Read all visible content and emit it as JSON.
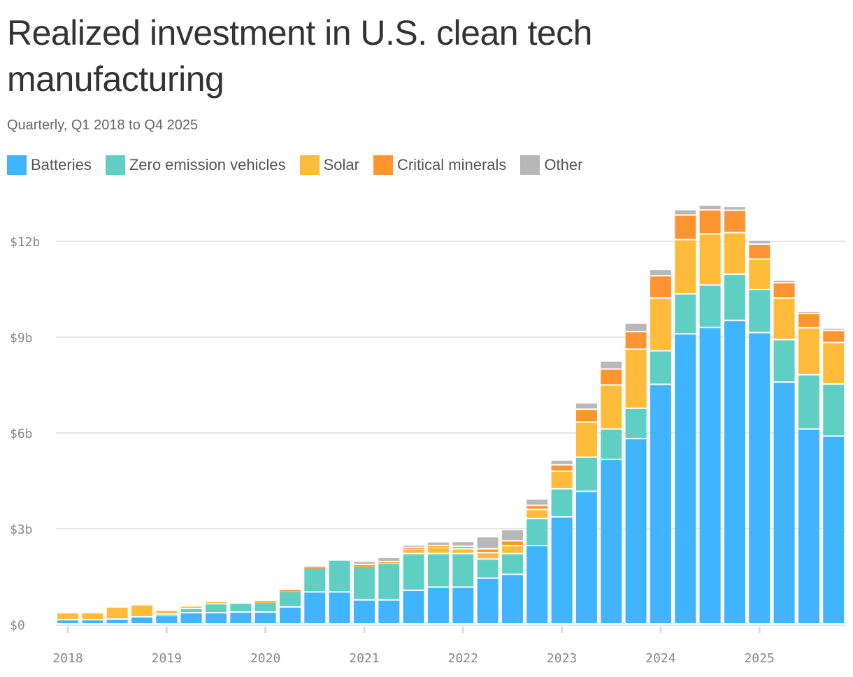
{
  "chart_data": {
    "type": "bar",
    "stacked": true,
    "title": "Realized investment in U.S. clean tech manufacturing",
    "subtitle": "Quarterly, Q1 2018 to Q4 2025",
    "y_unit": "$ billions",
    "ylim": [
      0,
      13.5
    ],
    "y_ticks": [
      0,
      3,
      6,
      9,
      12
    ],
    "y_tick_labels": [
      "$0",
      "$3b",
      "$6b",
      "$9b",
      "$12b"
    ],
    "x_tick_labels": [
      "2018",
      "2019",
      "2020",
      "2021",
      "2022",
      "2023",
      "2024",
      "2025"
    ],
    "grid": "horizontal",
    "legend": "top-left",
    "categories": [
      "Q1 2018",
      "Q2 2018",
      "Q3 2018",
      "Q4 2018",
      "Q1 2019",
      "Q2 2019",
      "Q3 2019",
      "Q4 2019",
      "Q1 2020",
      "Q2 2020",
      "Q3 2020",
      "Q4 2020",
      "Q1 2021",
      "Q2 2021",
      "Q3 2021",
      "Q4 2021",
      "Q1 2022",
      "Q2 2022",
      "Q3 2022",
      "Q4 2022",
      "Q1 2023",
      "Q2 2023",
      "Q3 2023",
      "Q4 2023",
      "Q1 2024",
      "Q2 2024",
      "Q3 2024",
      "Q4 2024",
      "Q1 2025",
      "Q2 2025",
      "Q3 2025",
      "Q4 2025"
    ],
    "series": [
      {
        "name": "Batteries",
        "color": "#40b4ff",
        "values": [
          0.13,
          0.13,
          0.15,
          0.22,
          0.26,
          0.35,
          0.35,
          0.37,
          0.37,
          0.53,
          1.0,
          1.0,
          0.75,
          0.75,
          1.05,
          1.15,
          1.15,
          1.43,
          1.55,
          2.45,
          3.35,
          4.15,
          5.15,
          5.8,
          7.5,
          9.08,
          9.28,
          9.5,
          9.12,
          7.57,
          6.1,
          5.88
        ]
      },
      {
        "name": "Zero emission vehicles",
        "color": "#5ecfc2",
        "values": [
          0,
          0,
          0,
          0,
          0.05,
          0.13,
          0.28,
          0.28,
          0.3,
          0.5,
          0.75,
          1.0,
          1.05,
          1.15,
          1.15,
          1.05,
          1.05,
          0.6,
          0.65,
          0.85,
          0.88,
          1.07,
          0.95,
          0.95,
          1.05,
          1.25,
          1.33,
          1.45,
          1.35,
          1.33,
          1.7,
          1.63
        ]
      },
      {
        "name": "Solar",
        "color": "#ffbc3b",
        "values": [
          0.22,
          0.22,
          0.38,
          0.38,
          0.12,
          0.08,
          0.07,
          0,
          0.03,
          0.02,
          0,
          0,
          0.03,
          0,
          0.15,
          0.2,
          0.15,
          0.2,
          0.25,
          0.28,
          0.55,
          1.1,
          1.38,
          1.85,
          1.65,
          1.7,
          1.6,
          1.3,
          0.95,
          1.3,
          1.47,
          1.3
        ]
      },
      {
        "name": "Critical minerals",
        "color": "#ff9530",
        "values": [
          0,
          0,
          0,
          0,
          0,
          0,
          0,
          0,
          0.03,
          0.03,
          0.03,
          0,
          0.03,
          0.05,
          0.05,
          0.05,
          0.08,
          0.12,
          0.15,
          0.13,
          0.2,
          0.4,
          0.5,
          0.55,
          0.7,
          0.77,
          0.75,
          0.7,
          0.47,
          0.48,
          0.45,
          0.38
        ]
      },
      {
        "name": "Other",
        "color": "#b8b8b8",
        "values": [
          0,
          0,
          0,
          0,
          0,
          0,
          0,
          0,
          0,
          0,
          0.03,
          0,
          0.1,
          0.13,
          0.07,
          0.12,
          0.15,
          0.38,
          0.35,
          0.2,
          0.15,
          0.2,
          0.25,
          0.27,
          0.2,
          0.17,
          0.15,
          0.12,
          0.12,
          0.08,
          0.07,
          0.07
        ]
      }
    ]
  }
}
